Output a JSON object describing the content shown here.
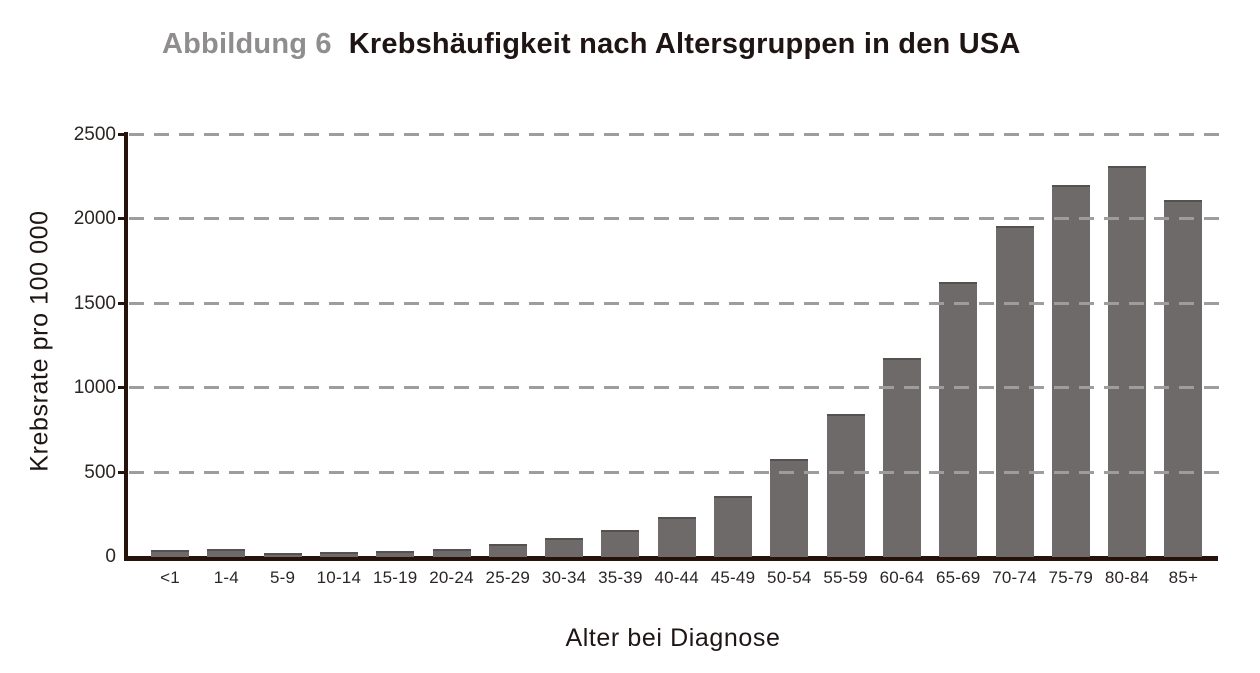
{
  "chart_data": {
    "type": "bar",
    "figure_label": "Abbildung 6",
    "title": "Krebshäufigkeit nach Altersgruppen in den USA",
    "xlabel": "Alter bei Diagnose",
    "ylabel": "Krebsrate pro 100 000",
    "categories": [
      "<1",
      "1-4",
      "5-9",
      "10-14",
      "15-19",
      "20-24",
      "25-29",
      "30-34",
      "35-39",
      "40-44",
      "45-49",
      "50-54",
      "55-59",
      "60-64",
      "65-69",
      "70-74",
      "75-79",
      "80-84",
      "85+"
    ],
    "values": [
      40,
      45,
      25,
      30,
      35,
      50,
      75,
      115,
      160,
      240,
      360,
      580,
      845,
      1180,
      1630,
      1960,
      2205,
      2315,
      2115
    ],
    "ylim": [
      0,
      2500
    ],
    "yticks": [
      0,
      500,
      1000,
      1500,
      2000,
      2500
    ],
    "grid": "horizontal-dashed",
    "legend": "none"
  },
  "colors": {
    "bar": "#6e6a6a",
    "axis": "#26130c",
    "grid": "#9d9d9d",
    "figure_label": "#8f8d8e",
    "title_text": "#1f1514",
    "tick_text": "#2b2624"
  }
}
